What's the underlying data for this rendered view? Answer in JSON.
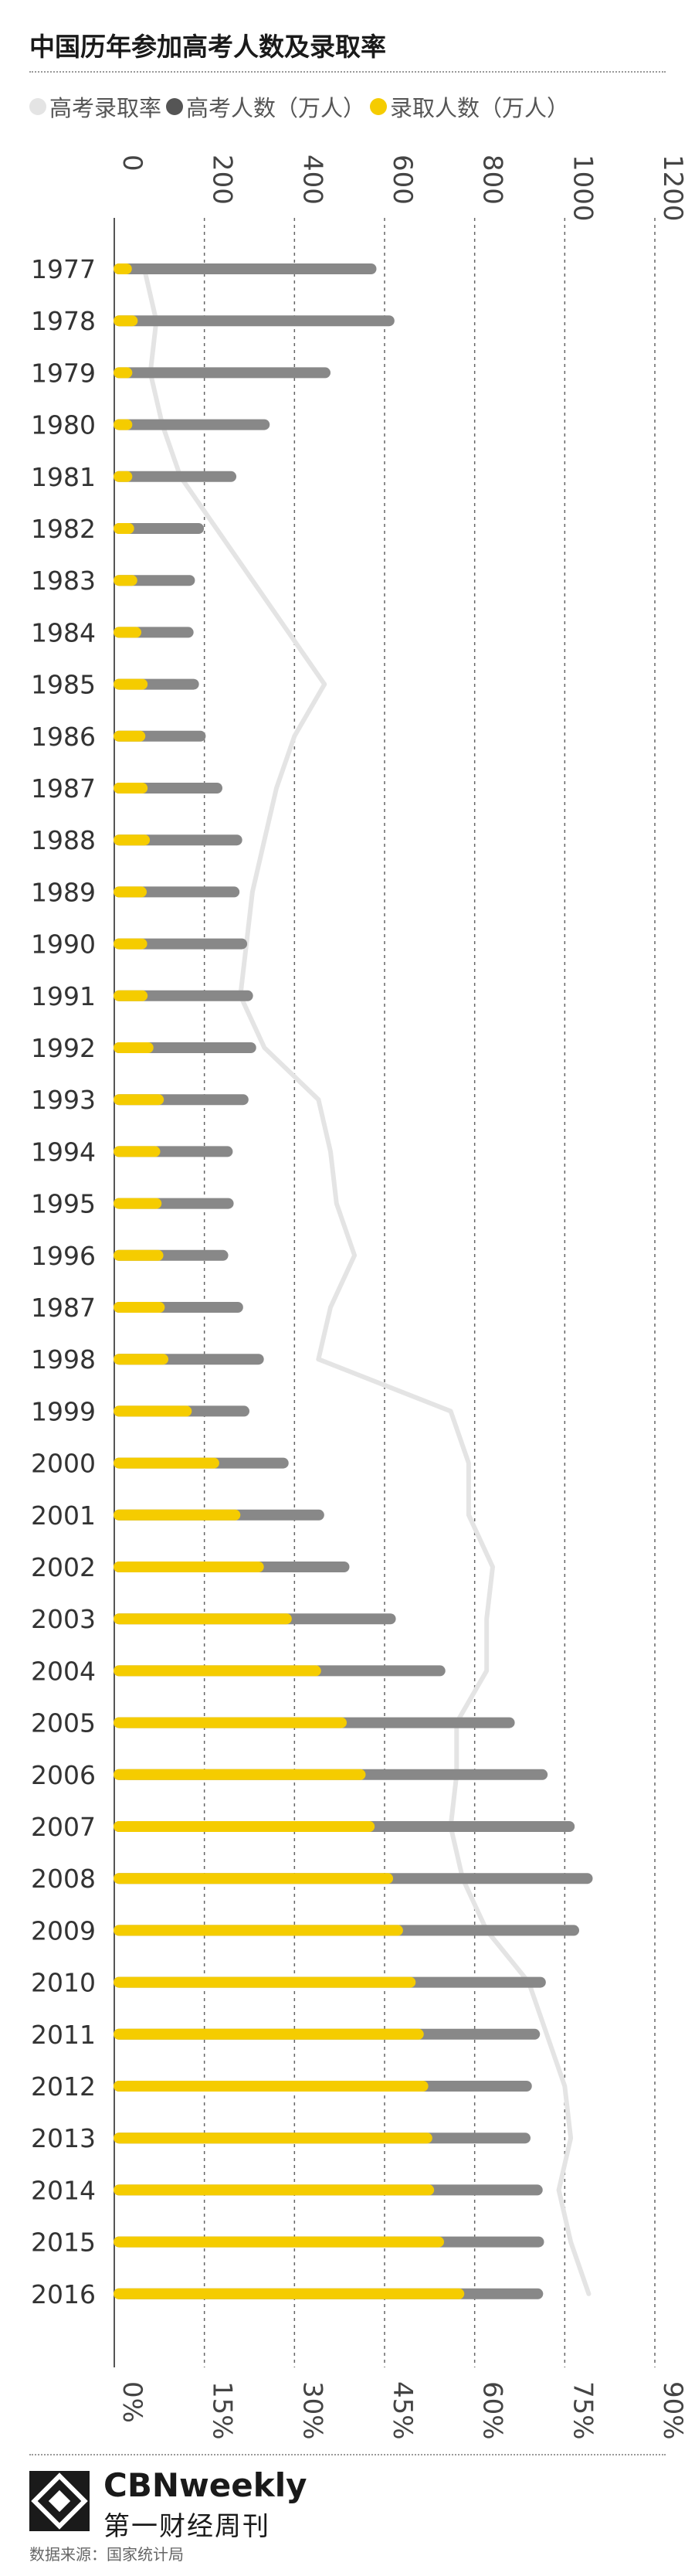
{
  "title": "中国历年参加高考人数及录取率",
  "legend": [
    {
      "label": "高考录取率",
      "color": "#e4e4e4"
    },
    {
      "label": "高考人数（万人）",
      "color": "#555555"
    },
    {
      "label": "录取人数（万人）",
      "color": "#f5cc00"
    }
  ],
  "chart_data": {
    "type": "bar",
    "orientation": "horizontal",
    "categories": [
      "1977",
      "1978",
      "1979",
      "1980",
      "1981",
      "1982",
      "1983",
      "1984",
      "1985",
      "1986",
      "1987",
      "1988",
      "1989",
      "1990",
      "1991",
      "1992",
      "1993",
      "1994",
      "1995",
      "1996",
      "1987",
      "1998",
      "1999",
      "2000",
      "2001",
      "2002",
      "2003",
      "2004",
      "2005",
      "2006",
      "2007",
      "2008",
      "2009",
      "2010",
      "2011",
      "2012",
      "2013",
      "2014",
      "2015",
      "2016"
    ],
    "value_axis": {
      "range": [
        0,
        1200
      ],
      "ticks": [
        "0",
        "200",
        "400",
        "600",
        "800",
        "1000",
        "1200"
      ],
      "position": "top"
    },
    "rate_axis": {
      "range": [
        0,
        90
      ],
      "ticks": [
        "0%",
        "15%",
        "30%",
        "45%",
        "60%",
        "75%",
        "90%"
      ],
      "position": "bottom"
    },
    "grid": true,
    "series": [
      {
        "name": "高考人数（万人）",
        "type": "bar",
        "color": "#888888",
        "values": [
          570,
          610,
          468,
          333,
          259,
          187,
          167,
          164,
          176,
          191,
          228,
          272,
          266,
          283,
          296,
          303,
          286,
          251,
          253,
          241,
          274,
          320,
          288,
          375,
          454,
          510,
          613,
          723,
          877,
          950,
          1010,
          1050,
          1020,
          946,
          933,
          915,
          912,
          939,
          942,
          940
        ]
      },
      {
        "name": "录取人数（万人）",
        "type": "bar",
        "color": "#f5cc00",
        "values": [
          27,
          40,
          28,
          28,
          28,
          32,
          39,
          48,
          62,
          57,
          62,
          67,
          60,
          61,
          62,
          75,
          98,
          90,
          93,
          97,
          100,
          108,
          160,
          221,
          268,
          320,
          382,
          447,
          504,
          546,
          566,
          607,
          629,
          657,
          675,
          685,
          694,
          698,
          720,
          765
        ]
      },
      {
        "name": "高考录取率",
        "type": "line",
        "color": "#e4e4e4",
        "values": [
          5,
          7,
          6,
          8,
          11,
          17,
          23,
          29,
          35,
          30,
          27,
          25,
          23,
          22,
          21,
          25,
          34,
          36,
          37,
          40,
          36,
          34,
          56,
          59,
          59,
          63,
          62,
          62,
          57,
          57,
          56,
          58,
          62,
          69,
          72,
          75,
          76,
          74,
          76,
          79
        ]
      }
    ]
  },
  "brand": {
    "en": "CBNweekly",
    "cn": "第一财经周刊"
  },
  "source": "数据来源：国家统计局"
}
